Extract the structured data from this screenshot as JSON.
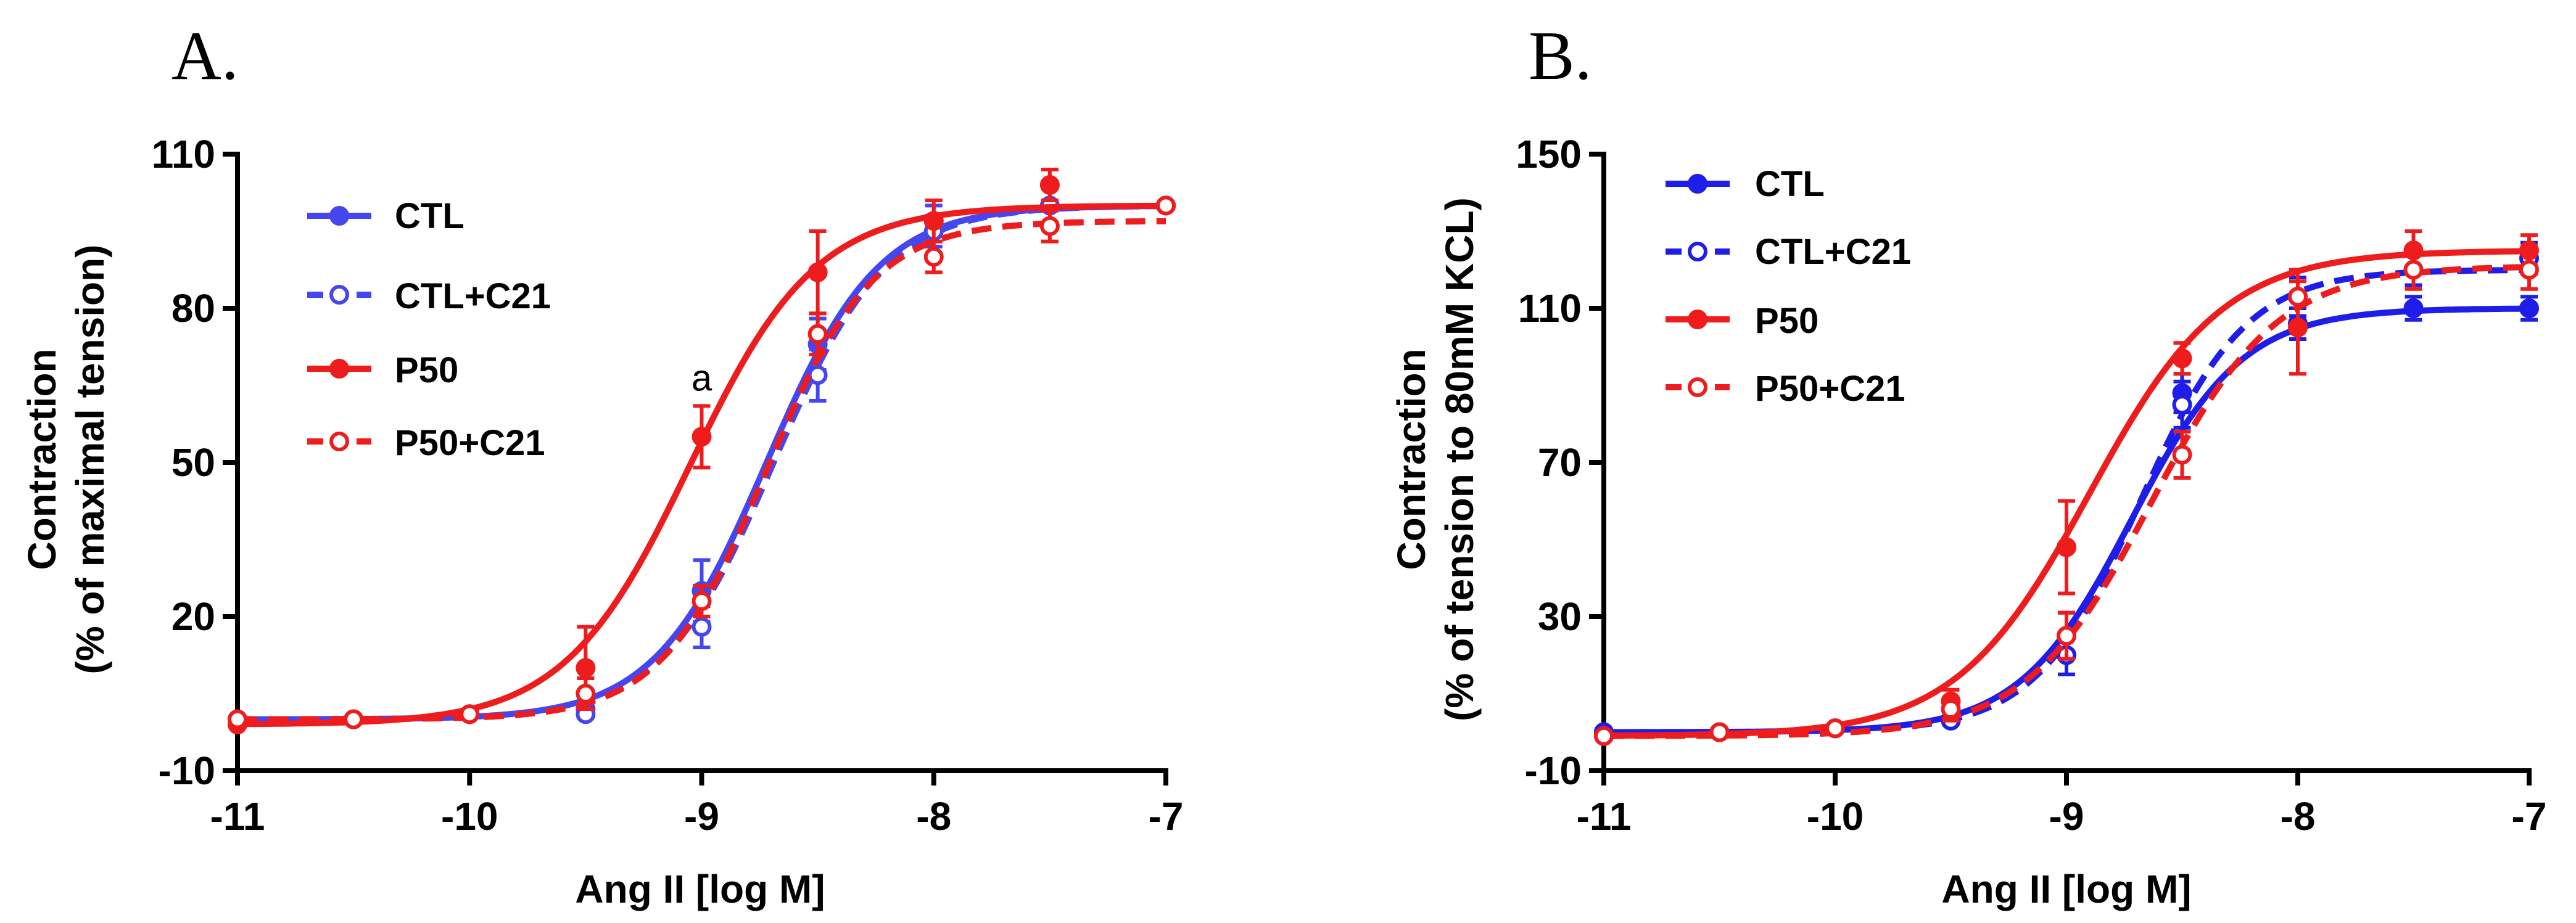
{
  "chart_data": [
    {
      "type": "line",
      "panel_label": "A.",
      "xlabel": "Ang II [log M]",
      "ylabel_line1": "Contraction",
      "ylabel_line2": "(% of maximal tension)",
      "xlim": [
        -11,
        -7
      ],
      "ylim": [
        -10,
        110
      ],
      "xticks": [
        -11,
        -10,
        -9,
        -8,
        -7
      ],
      "yticks": [
        -10,
        20,
        50,
        80,
        110
      ],
      "x": [
        -11,
        -10.5,
        -10,
        -9.5,
        -9,
        -8.5,
        -8,
        -7.5,
        -7
      ],
      "annotations": [
        {
          "text": "a",
          "x": -9,
          "y": 64
        }
      ],
      "series": [
        {
          "name": "CTL",
          "color": "#4646f0",
          "marker": "filled",
          "dashed": false,
          "values": [
            0,
            0,
            1,
            2,
            25,
            73,
            97,
            100,
            100
          ],
          "errors": [
            0,
            0,
            0,
            0,
            6,
            5,
            3,
            0,
            0
          ],
          "fit": {
            "bottom": 0,
            "top": 100,
            "logEC50": -8.72,
            "hill": 1.8
          }
        },
        {
          "name": "CTL+C21",
          "color": "#4646f0",
          "marker": "open",
          "dashed": true,
          "values": [
            0,
            0,
            1,
            1,
            18,
            67,
            95,
            100,
            100
          ],
          "errors": [
            0,
            0,
            0,
            0,
            4,
            5,
            3,
            0,
            0
          ],
          "fit": {
            "bottom": 0,
            "top": 100,
            "logEC50": -8.69,
            "hill": 1.8
          }
        },
        {
          "name": "P50",
          "color": "#ee1c1c",
          "marker": "filled",
          "dashed": false,
          "values": [
            -1,
            0,
            1,
            10,
            55,
            87,
            97,
            104,
            100
          ],
          "errors": [
            0,
            0,
            0,
            8,
            6,
            8,
            4,
            3,
            0
          ],
          "fit": {
            "bottom": -1,
            "top": 100,
            "logEC50": -9.05,
            "hill": 1.6
          }
        },
        {
          "name": "P50+C21",
          "color": "#ee1c1c",
          "marker": "open",
          "dashed": true,
          "values": [
            0,
            0,
            1,
            5,
            23,
            75,
            90,
            96,
            100
          ],
          "errors": [
            0,
            0,
            0,
            3,
            3,
            4,
            3,
            3,
            0
          ],
          "fit": {
            "bottom": 0,
            "top": 97,
            "logEC50": -8.72,
            "hill": 1.9
          }
        }
      ]
    },
    {
      "type": "line",
      "panel_label": "B.",
      "xlabel": "Ang II [log M]",
      "ylabel_line1": "Contraction",
      "ylabel_line2": "(% of tension to 80mM KCL)",
      "xlim": [
        -11,
        -7
      ],
      "ylim": [
        -10,
        150
      ],
      "xticks": [
        -11,
        -10,
        -9,
        -8,
        -7
      ],
      "yticks": [
        -10,
        30,
        70,
        110,
        150
      ],
      "x": [
        -11,
        -10.5,
        -10,
        -9.5,
        -9,
        -8.5,
        -8,
        -7.5,
        -7
      ],
      "annotations": [],
      "series": [
        {
          "name": "CTL",
          "color": "#1e1ee8",
          "marker": "filled",
          "dashed": false,
          "values": [
            0,
            0,
            1,
            3,
            25,
            88,
            106,
            110,
            110
          ],
          "errors": [
            0,
            0,
            0,
            0,
            6,
            5,
            4,
            3,
            3
          ],
          "fit": {
            "bottom": 0,
            "top": 110,
            "logEC50": -8.72,
            "hill": 1.8
          }
        },
        {
          "name": "CTL+C21",
          "color": "#1e1ee8",
          "marker": "open",
          "dashed": true,
          "values": [
            0,
            0,
            1,
            3,
            20,
            85,
            113,
            120,
            123
          ],
          "errors": [
            0,
            0,
            0,
            0,
            5,
            6,
            5,
            4,
            4
          ],
          "fit": {
            "bottom": 0,
            "top": 120,
            "logEC50": -8.68,
            "hill": 1.9
          }
        },
        {
          "name": "P50",
          "color": "#ee1c1c",
          "marker": "filled",
          "dashed": false,
          "values": [
            -1,
            0,
            1,
            8,
            48,
            97,
            105,
            125,
            125
          ],
          "errors": [
            0,
            0,
            0,
            3,
            12,
            4,
            12,
            5,
            4
          ],
          "fit": {
            "bottom": -1,
            "top": 125,
            "logEC50": -8.9,
            "hill": 1.5
          }
        },
        {
          "name": "P50+C21",
          "color": "#ee1c1c",
          "marker": "open",
          "dashed": true,
          "values": [
            -1,
            0,
            1,
            6,
            25,
            72,
            113,
            120,
            120
          ],
          "errors": [
            0,
            0,
            0,
            3,
            6,
            6,
            7,
            5,
            5
          ],
          "fit": {
            "bottom": -1,
            "top": 121,
            "logEC50": -8.63,
            "hill": 1.6
          }
        }
      ]
    }
  ]
}
